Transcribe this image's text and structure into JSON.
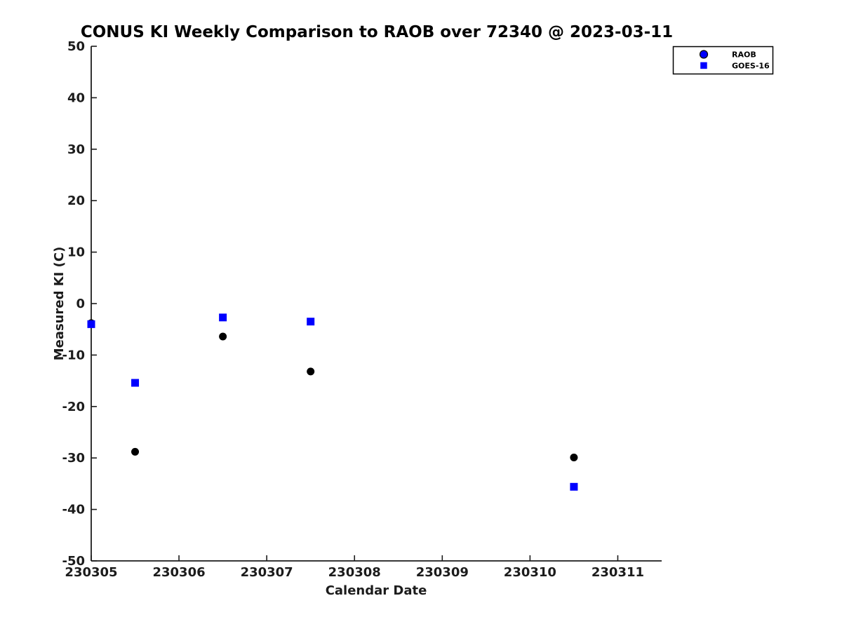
{
  "chart_data": {
    "type": "scatter",
    "title": "CONUS KI Weekly Comparison to RAOB over 72340 @ 2023-03-11",
    "xlabel": "Calendar Date",
    "ylabel": "Measured KI (C)",
    "xlim": [
      230305,
      230311.5
    ],
    "ylim": [
      -50,
      50
    ],
    "xticks": [
      230305,
      230306,
      230307,
      230308,
      230309,
      230310,
      230311
    ],
    "yticks": [
      -50,
      -40,
      -30,
      -20,
      -10,
      0,
      10,
      20,
      30,
      40,
      50
    ],
    "grid": false,
    "legend": {
      "position": "top-right-outside-plot",
      "border_color": "#000000",
      "background": "#ffffff"
    },
    "axis_color": "#1c1c1c",
    "series": [
      {
        "name": "RAOB",
        "marker": "circle",
        "color": "#000000",
        "legend_color": "#0000ff",
        "points": [
          [
            230305.0,
            -3.8
          ],
          [
            230305.5,
            -28.8
          ],
          [
            230306.5,
            -6.4
          ],
          [
            230307.5,
            -13.2
          ],
          [
            230310.5,
            -29.9
          ]
        ]
      },
      {
        "name": "GOES-16",
        "marker": "square",
        "color": "#0000ff",
        "legend_color": "#0000ff",
        "points": [
          [
            230305.0,
            -4.0
          ],
          [
            230305.5,
            -15.4
          ],
          [
            230306.5,
            -2.7
          ],
          [
            230307.5,
            -3.5
          ],
          [
            230310.5,
            -35.6
          ]
        ]
      }
    ]
  }
}
